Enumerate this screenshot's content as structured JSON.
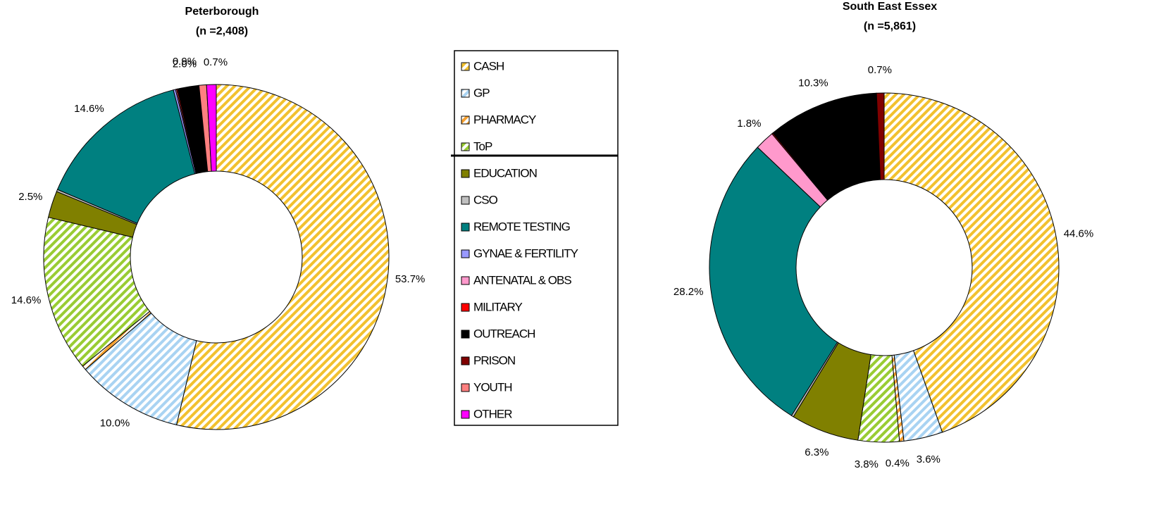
{
  "chart_data": [
    {
      "type": "pie",
      "title": "Peterborough",
      "subtitle": "(n =2,408)",
      "categories": [
        "CASH",
        "GP",
        "PHARMACY",
        "ToP",
        "EDUCATION",
        "CSO",
        "REMOTE TESTING",
        "GYNAE & FERTILITY",
        "ANTENATAL & OBS",
        "MILITARY",
        "OUTREACH",
        "PRISON",
        "YOUTH",
        "OTHER"
      ],
      "values": [
        53.7,
        10.0,
        0.4,
        14.6,
        2.5,
        0.2,
        14.6,
        0.2,
        0.1,
        0.1,
        2.0,
        0,
        0.7,
        0.9
      ],
      "value_labels": [
        "53.7%",
        "10.0%",
        null,
        "14.6%",
        "2.5%",
        null,
        "14.6%",
        null,
        null,
        null,
        "2.0%",
        null,
        "0.7%",
        "0.9%"
      ],
      "colors": [
        "#f2c12e",
        "#a9d3f2",
        "#f5a030",
        "#99cc33",
        "#808000",
        "#c0c0c0",
        "#008080",
        "#9999ff",
        "#ff99cc",
        "#ff0000",
        "#000000",
        "#800000",
        "#ff8080",
        "#ff00ff"
      ],
      "hatched": [
        true,
        true,
        true,
        true,
        false,
        false,
        false,
        false,
        false,
        false,
        false,
        false,
        false,
        false
      ]
    },
    {
      "type": "pie",
      "title": "South East Essex",
      "subtitle": "(n =5,861)",
      "categories": [
        "CASH",
        "GP",
        "PHARMACY",
        "ToP",
        "EDUCATION",
        "CSO",
        "REMOTE TESTING",
        "GYNAE & FERTILITY",
        "ANTENATAL & OBS",
        "MILITARY",
        "OUTREACH",
        "PRISON",
        "YOUTH",
        "OTHER"
      ],
      "values": [
        44.6,
        3.6,
        0.4,
        3.8,
        6.3,
        0.2,
        28.2,
        0,
        1.8,
        0.1,
        10.3,
        0.7,
        0,
        0
      ],
      "value_labels": [
        "44.6%",
        "3.6%",
        "0.4%",
        "3.8%",
        "6.3%",
        null,
        "28.2%",
        null,
        "1.8%",
        null,
        "10.3%",
        "0.7%",
        null,
        null
      ],
      "colors": [
        "#f2c12e",
        "#a9d3f2",
        "#f5a030",
        "#99cc33",
        "#808000",
        "#c0c0c0",
        "#008080",
        "#9999ff",
        "#ff99cc",
        "#ff0000",
        "#000000",
        "#800000",
        "#ff8080",
        "#ff00ff"
      ],
      "hatched": [
        true,
        true,
        true,
        true,
        false,
        false,
        false,
        false,
        false,
        false,
        false,
        false,
        false,
        false
      ]
    }
  ]
}
